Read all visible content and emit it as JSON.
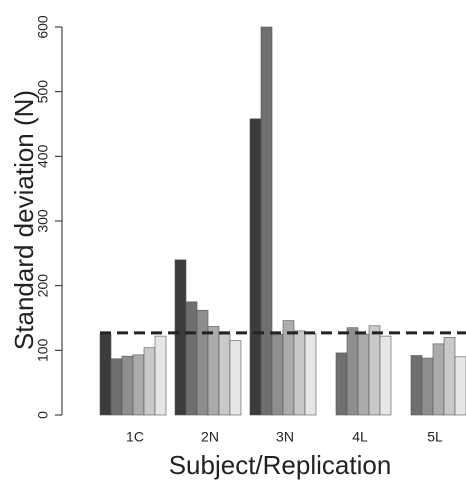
{
  "chart_data": {
    "type": "bar",
    "y_label": "Standard deviation (N)",
    "x_label": "Subject/Replication",
    "categories": [
      "1C",
      "2N",
      "3N",
      "4L",
      "5L"
    ],
    "series": [
      {
        "color": "#3c3c3c",
        "values": [
          125,
          240,
          458,
          null,
          null
        ]
      },
      {
        "color": "#6f6f6f",
        "values": [
          87,
          175,
          600,
          96,
          92
        ]
      },
      {
        "color": "#8e8e8e",
        "values": [
          91,
          162,
          125,
          135,
          88
        ]
      },
      {
        "color": "#ababab",
        "values": [
          93,
          137,
          146,
          125,
          110
        ]
      },
      {
        "color": "#c9c9c9",
        "values": [
          104,
          125,
          130,
          138,
          120
        ]
      },
      {
        "color": "#e6e6e6",
        "values": [
          122,
          115,
          126,
          122,
          90
        ]
      }
    ],
    "hline": 127,
    "ylim": [
      0,
      600
    ],
    "yticks": [
      0,
      100,
      200,
      300,
      400,
      500,
      600
    ]
  }
}
